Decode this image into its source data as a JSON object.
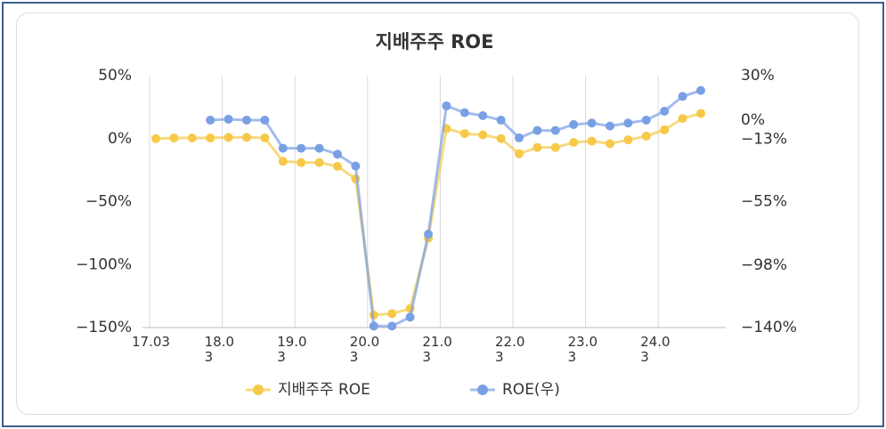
{
  "chart_data": {
    "type": "line",
    "title": "지배주주 ROE",
    "categories": [
      "17.03",
      null,
      null,
      null,
      "18.03",
      null,
      null,
      null,
      "19.03",
      null,
      null,
      null,
      "20.03",
      null,
      null,
      null,
      "21.03",
      null,
      null,
      null,
      "22.03",
      null,
      null,
      null,
      "23.03",
      null,
      null,
      null,
      "24.03",
      null,
      null
    ],
    "series": [
      {
        "name": "지배주주 ROE",
        "color": "#f7c948",
        "values": [
          0,
          0.5,
          0.5,
          0.5,
          1,
          1,
          0.5,
          -18,
          -19,
          -19,
          -22,
          -32,
          -140,
          -139,
          -135,
          -79,
          8,
          4,
          3,
          0,
          -12,
          -7,
          -7,
          -3,
          -2,
          -4,
          -1,
          2,
          7,
          16,
          20
        ]
      },
      {
        "name": "ROE(우)",
        "color": "#7aa0e4",
        "axis": "y2",
        "values": [
          null,
          null,
          null,
          0,
          0.6,
          0,
          0,
          -19,
          -19,
          -19,
          -23,
          -31,
          -139,
          -139,
          -133,
          -77,
          9.6,
          5,
          3,
          0,
          -12,
          -7,
          -7,
          -3,
          -2,
          -4,
          -2,
          0,
          6,
          16,
          20
        ]
      }
    ],
    "ylim": [
      -150,
      50
    ],
    "yticks": [
      {
        "value": 50,
        "label": "50%"
      },
      {
        "value": 0,
        "label": "0%"
      },
      {
        "value": -50,
        "label": "−50%"
      },
      {
        "value": -100,
        "label": "−100%"
      },
      {
        "value": -150,
        "label": "−150%"
      }
    ],
    "y2lim": [
      -140,
      30
    ],
    "y2ticks": [
      {
        "value": 30,
        "label": "30%"
      },
      {
        "value": 0,
        "label": "0%"
      },
      {
        "value": -13,
        "label": "−13%"
      },
      {
        "value": -55,
        "label": "−55%"
      },
      {
        "value": -98,
        "label": "−98%"
      },
      {
        "value": -140,
        "label": "−140%"
      }
    ],
    "legend": "bottom"
  }
}
